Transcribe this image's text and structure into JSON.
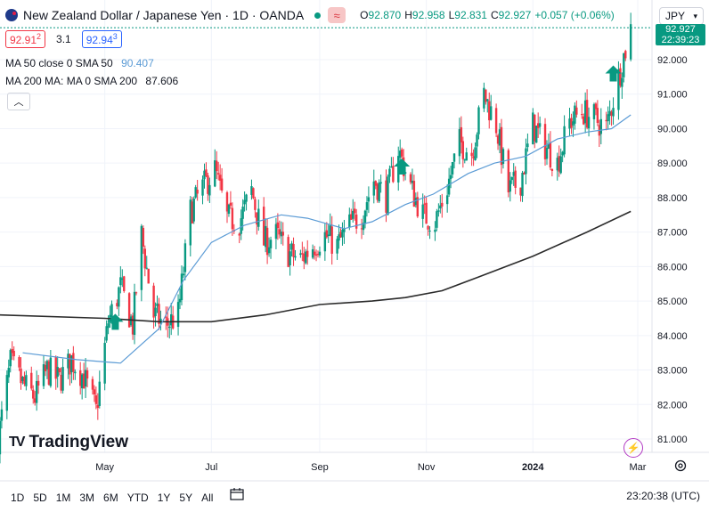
{
  "header": {
    "title": "New Zealand Dollar / Japanese Yen · 1D · OANDA",
    "ohlc": [
      {
        "k": "O",
        "v": "92.870"
      },
      {
        "k": "H",
        "v": "92.958"
      },
      {
        "k": "L",
        "v": "92.831"
      },
      {
        "k": "C",
        "v": "92.927"
      }
    ],
    "change": "+0.057 (+0.06%)",
    "bid": "92.91",
    "bid_sup": "2",
    "spread": "3.1",
    "ask": "92.94",
    "ask_sup": "3"
  },
  "indicators": {
    "ma50": {
      "label": "MA 50 close 0 SMA 50",
      "value": "90.407"
    },
    "ma200": {
      "label": "MA 200 MA: MA 0 SMA 200",
      "value": "87.606"
    }
  },
  "currency": "JPY",
  "price_tag": {
    "price": "92.927",
    "countdown": "22:39:23"
  },
  "ranges": [
    "1D",
    "5D",
    "1M",
    "3M",
    "6M",
    "YTD",
    "1Y",
    "5Y",
    "All"
  ],
  "clock": "23:20:38 (UTC)",
  "logo": "TradingView",
  "colors": {
    "up": "#089981",
    "down": "#f23645",
    "ma50": "#5b9bd5",
    "ma200": "#2b2b2b"
  },
  "chart_data": {
    "type": "candlestick",
    "y_ticks": [
      "81.000",
      "82.000",
      "83.000",
      "84.000",
      "85.000",
      "86.000",
      "87.000",
      "88.000",
      "89.000",
      "90.000",
      "91.000",
      "92.000"
    ],
    "x_ticks": [
      "May",
      "Jul",
      "Sep",
      "Nov",
      "2024",
      "Mar"
    ],
    "ylim": [
      80.4,
      93.3
    ],
    "markers": [
      {
        "type": "up-arrow",
        "date": "2023-05-07",
        "price": 84.4
      },
      {
        "type": "up-arrow",
        "date": "2023-10-18",
        "price": 88.9
      },
      {
        "type": "up-arrow",
        "date": "2024-02-16",
        "price": 91.6
      }
    ],
    "ma50_points": [
      {
        "date": "2023-03-15",
        "value": 83.5
      },
      {
        "date": "2023-04-15",
        "value": 83.3
      },
      {
        "date": "2023-05-10",
        "value": 83.2
      },
      {
        "date": "2023-06-01",
        "value": 84.2
      },
      {
        "date": "2023-06-15",
        "value": 85.6
      },
      {
        "date": "2023-07-01",
        "value": 86.7
      },
      {
        "date": "2023-07-20",
        "value": 87.2
      },
      {
        "date": "2023-08-10",
        "value": 87.5
      },
      {
        "date": "2023-08-25",
        "value": 87.4
      },
      {
        "date": "2023-09-15",
        "value": 87.1
      },
      {
        "date": "2023-10-01",
        "value": 87.3
      },
      {
        "date": "2023-10-20",
        "value": 87.8
      },
      {
        "date": "2023-11-05",
        "value": 88.1
      },
      {
        "date": "2023-11-25",
        "value": 88.7
      },
      {
        "date": "2023-12-10",
        "value": 89.0
      },
      {
        "date": "2023-12-28",
        "value": 89.2
      },
      {
        "date": "2024-01-15",
        "value": 89.7
      },
      {
        "date": "2024-02-01",
        "value": 89.9
      },
      {
        "date": "2024-02-15",
        "value": 90.0
      },
      {
        "date": "2024-02-26",
        "value": 90.4
      }
    ],
    "ma200_points": [
      {
        "date": "2023-03-01",
        "value": 84.6
      },
      {
        "date": "2023-05-01",
        "value": 84.5
      },
      {
        "date": "2023-06-01",
        "value": 84.4
      },
      {
        "date": "2023-07-01",
        "value": 84.4
      },
      {
        "date": "2023-08-01",
        "value": 84.6
      },
      {
        "date": "2023-09-01",
        "value": 84.9
      },
      {
        "date": "2023-10-01",
        "value": 85.0
      },
      {
        "date": "2023-10-20",
        "value": 85.1
      },
      {
        "date": "2023-11-10",
        "value": 85.3
      },
      {
        "date": "2023-12-01",
        "value": 85.7
      },
      {
        "date": "2024-01-01",
        "value": 86.3
      },
      {
        "date": "2024-02-01",
        "value": 87.0
      },
      {
        "date": "2024-02-26",
        "value": 87.6
      }
    ],
    "anchors": [
      {
        "date": "2023-03-01",
        "value": 81.0
      },
      {
        "date": "2023-03-08",
        "value": 83.2
      },
      {
        "date": "2023-03-15",
        "value": 82.6
      },
      {
        "date": "2023-03-22",
        "value": 82.2
      },
      {
        "date": "2023-03-29",
        "value": 83.0
      },
      {
        "date": "2023-04-05",
        "value": 82.7
      },
      {
        "date": "2023-04-12",
        "value": 83.3
      },
      {
        "date": "2023-04-19",
        "value": 82.8
      },
      {
        "date": "2023-04-26",
        "value": 81.8
      },
      {
        "date": "2023-05-03",
        "value": 84.4
      },
      {
        "date": "2023-05-10",
        "value": 85.4
      },
      {
        "date": "2023-05-17",
        "value": 84.3
      },
      {
        "date": "2023-05-22",
        "value": 86.9
      },
      {
        "date": "2023-05-29",
        "value": 84.6
      },
      {
        "date": "2023-06-05",
        "value": 84.3
      },
      {
        "date": "2023-06-12",
        "value": 84.6
      },
      {
        "date": "2023-06-19",
        "value": 87.6
      },
      {
        "date": "2023-06-26",
        "value": 88.3
      },
      {
        "date": "2023-07-03",
        "value": 88.8
      },
      {
        "date": "2023-07-10",
        "value": 87.4
      },
      {
        "date": "2023-07-17",
        "value": 87.3
      },
      {
        "date": "2023-07-24",
        "value": 88.2
      },
      {
        "date": "2023-07-31",
        "value": 86.7
      },
      {
        "date": "2023-08-07",
        "value": 86.9
      },
      {
        "date": "2023-08-14",
        "value": 86.4
      },
      {
        "date": "2023-08-21",
        "value": 86.2
      },
      {
        "date": "2023-08-28",
        "value": 86.6
      },
      {
        "date": "2023-09-04",
        "value": 86.9
      },
      {
        "date": "2023-09-11",
        "value": 86.6
      },
      {
        "date": "2023-09-18",
        "value": 87.2
      },
      {
        "date": "2023-09-25",
        "value": 87.5
      },
      {
        "date": "2023-10-02",
        "value": 88.5
      },
      {
        "date": "2023-10-09",
        "value": 88.0
      },
      {
        "date": "2023-10-16",
        "value": 89.4
      },
      {
        "date": "2023-10-23",
        "value": 88.3
      },
      {
        "date": "2023-10-30",
        "value": 87.5
      },
      {
        "date": "2023-11-06",
        "value": 87.3
      },
      {
        "date": "2023-11-13",
        "value": 88.3
      },
      {
        "date": "2023-11-20",
        "value": 89.6
      },
      {
        "date": "2023-11-27",
        "value": 89.3
      },
      {
        "date": "2023-12-04",
        "value": 91.0
      },
      {
        "date": "2023-12-11",
        "value": 90.1
      },
      {
        "date": "2023-12-18",
        "value": 88.2
      },
      {
        "date": "2023-12-25",
        "value": 88.5
      },
      {
        "date": "2024-01-01",
        "value": 90.1
      },
      {
        "date": "2024-01-08",
        "value": 89.5
      },
      {
        "date": "2024-01-15",
        "value": 89.0
      },
      {
        "date": "2024-01-22",
        "value": 90.2
      },
      {
        "date": "2024-01-29",
        "value": 90.5
      },
      {
        "date": "2024-02-05",
        "value": 90.3
      },
      {
        "date": "2024-02-12",
        "value": 90.0
      },
      {
        "date": "2024-02-19",
        "value": 91.5
      },
      {
        "date": "2024-02-26",
        "value": 92.9
      }
    ],
    "date_range": [
      "2023-03-01",
      "2024-03-01"
    ]
  }
}
